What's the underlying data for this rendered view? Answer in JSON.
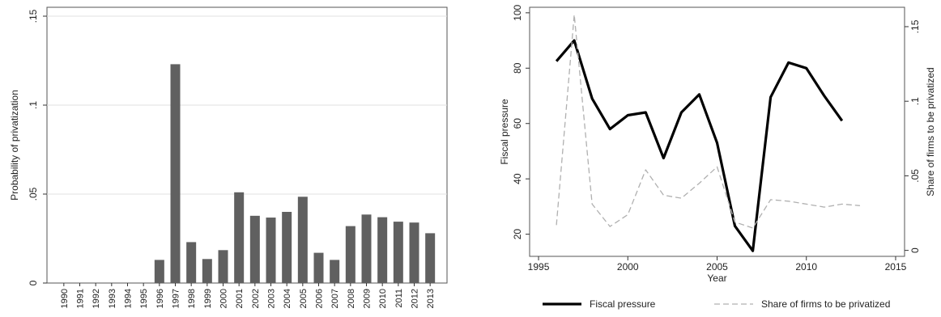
{
  "chart_data": [
    {
      "type": "bar",
      "ylabel": "Probability of privatization",
      "xlabel": "",
      "ylim": [
        0,
        0.155
      ],
      "yticks": [
        0,
        0.05,
        0.1,
        0.15
      ],
      "ytick_labels": [
        "0",
        ".05",
        ".1",
        ".15"
      ],
      "grid": true,
      "bar_color": "#606060",
      "categories": [
        "1990",
        "1991",
        "1992",
        "1993",
        "1994",
        "1995",
        "1996",
        "1997",
        "1998",
        "1999",
        "2000",
        "2001",
        "2002",
        "2003",
        "2004",
        "2005",
        "2006",
        "2007",
        "2008",
        "2009",
        "2010",
        "2011",
        "2012",
        "2013"
      ],
      "values": [
        0,
        0,
        0,
        0,
        0,
        0,
        0.013,
        0.123,
        0.023,
        0.0135,
        0.0185,
        0.051,
        0.0378,
        0.0368,
        0.04,
        0.0485,
        0.017,
        0.013,
        0.032,
        0.0385,
        0.037,
        0.0345,
        0.034,
        0.028
      ]
    },
    {
      "type": "line",
      "xlabel": "Year",
      "ylabel": "Fiscal pressure",
      "ylabel_right": "Share of firms to be privatized",
      "xlim": [
        1994.5,
        2015.5
      ],
      "xticks": [
        1995,
        2000,
        2005,
        2010,
        2015
      ],
      "ylim": [
        12,
        102
      ],
      "yticks": [
        20,
        40,
        60,
        80,
        100
      ],
      "ylim_right": [
        -0.004,
        0.163
      ],
      "yticks_right": [
        0,
        0.05,
        0.1,
        0.15
      ],
      "ytick_labels_right": [
        "0",
        ".05",
        ".1",
        ".15"
      ],
      "legend_position": "bottom",
      "series": [
        {
          "name": "Fiscal pressure",
          "axis": "left",
          "color": "#000000",
          "style": "solid",
          "x": [
            1996,
            1997,
            1998,
            1999,
            2000,
            2001,
            2002,
            2003,
            2004,
            2005,
            2006,
            2007,
            2008,
            2009,
            2010,
            2011,
            2012
          ],
          "y": [
            82.5,
            90,
            69,
            58,
            63,
            64,
            47.5,
            64,
            70.5,
            53,
            23,
            14,
            69.5,
            82,
            80,
            70,
            61
          ]
        },
        {
          "name": "Share of firms to be privatized",
          "axis": "right",
          "color": "#b0b0b0",
          "style": "dashed",
          "x": [
            1996,
            1997,
            1998,
            1999,
            2000,
            2001,
            2002,
            2003,
            2004,
            2005,
            2006,
            2007,
            2008,
            2009,
            2010,
            2011,
            2012,
            2013
          ],
          "y": [
            0.017,
            0.158,
            0.031,
            0.016,
            0.024,
            0.054,
            0.037,
            0.035,
            0.045,
            0.056,
            0.019,
            0.015,
            0.034,
            0.033,
            0.031,
            0.029,
            0.031,
            0.03
          ]
        }
      ]
    }
  ]
}
